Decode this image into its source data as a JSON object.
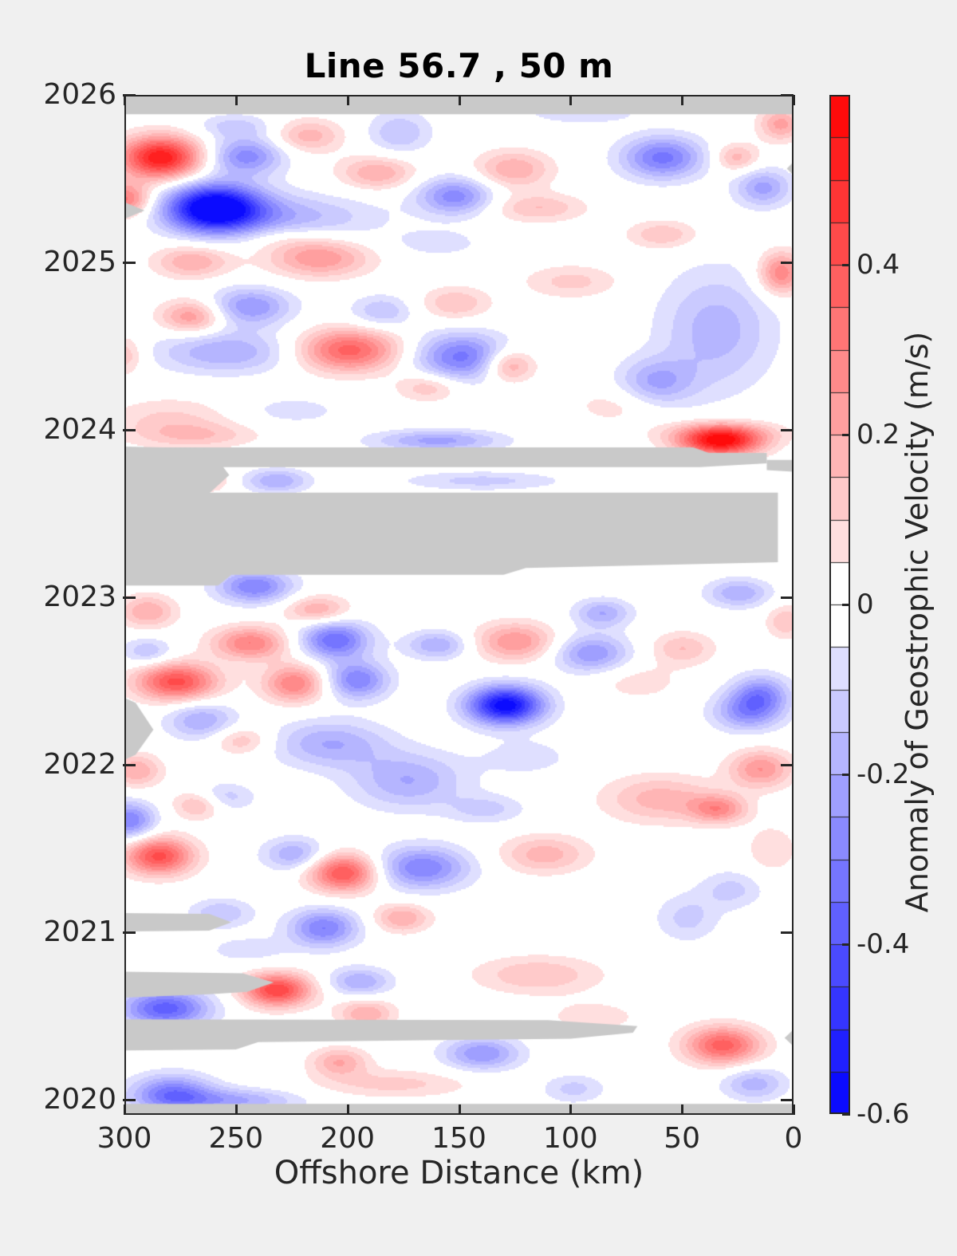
{
  "chart_data": {
    "type": "heatmap",
    "title": "Line 56.7 , 50 m",
    "xlabel": "Offshore Distance (km)",
    "x_ticks": [
      "300",
      "250",
      "200",
      "150",
      "100",
      "50",
      "0"
    ],
    "x_tick_km": [
      300,
      250,
      200,
      150,
      100,
      50,
      0
    ],
    "x_range": [
      300,
      0
    ],
    "x_axis_reversed": true,
    "y_ticks": [
      "2020",
      "2021",
      "2022",
      "2023",
      "2024",
      "2025",
      "2026"
    ],
    "y_tick_years": [
      2020,
      2021,
      2022,
      2023,
      2024,
      2025,
      2026
    ],
    "y_range": [
      2019.91,
      2026.0
    ],
    "grid": false,
    "colorbar": {
      "label": "Anomaly of Geostrophic Velocity (m/s)",
      "tick_labels": [
        "0.4",
        "0.2",
        "0",
        "-0.2",
        "-0.4",
        "-0.6"
      ],
      "tick_values": [
        0.4,
        0.2,
        0,
        -0.2,
        -0.4,
        -0.6
      ],
      "range": [
        -0.6,
        0.6
      ],
      "level_step": 0.05,
      "colormap": "blue-white-red",
      "neg_color": "#0000ff",
      "zero_color": "#ffffff",
      "pos_color": "#ff0000"
    },
    "missing_color": "#c9c9c9",
    "background_color": "#f0f0f0",
    "axis_color": "#262626",
    "anomaly_columns": [
      "offshore_km",
      "year",
      "amplitude_m_per_s",
      "sigma_km",
      "sigma_yr"
    ],
    "anomalies": [
      [
        284,
        2025.63,
        0.55,
        13,
        0.09
      ],
      [
        300,
        2025.38,
        0.32,
        8,
        0.07
      ],
      [
        260,
        2025.33,
        -0.66,
        15,
        0.1
      ],
      [
        228,
        2025.27,
        -0.18,
        28,
        0.1
      ],
      [
        246,
        2025.64,
        -0.28,
        12,
        0.08
      ],
      [
        251,
        2025.82,
        -0.12,
        12,
        0.05
      ],
      [
        218,
        2025.76,
        0.18,
        11,
        0.07
      ],
      [
        187,
        2025.54,
        0.2,
        12,
        0.07
      ],
      [
        177,
        2025.78,
        -0.15,
        10,
        0.09
      ],
      [
        152,
        2025.4,
        -0.28,
        12,
        0.08
      ],
      [
        126,
        2025.56,
        0.2,
        12,
        0.08
      ],
      [
        115,
        2025.33,
        0.15,
        15,
        0.06
      ],
      [
        95,
        2025.9,
        -0.1,
        18,
        0.05
      ],
      [
        59,
        2025.63,
        -0.32,
        13,
        0.09
      ],
      [
        26,
        2025.63,
        0.18,
        7,
        0.06
      ],
      [
        14,
        2025.45,
        -0.22,
        9,
        0.08
      ],
      [
        6,
        2025.83,
        0.22,
        7,
        0.07
      ],
      [
        59,
        2025.17,
        0.15,
        11,
        0.06
      ],
      [
        270,
        2025.01,
        0.2,
        12,
        0.07
      ],
      [
        213,
        2025.03,
        0.25,
        16,
        0.08
      ],
      [
        160,
        2025.12,
        -0.08,
        15,
        0.06
      ],
      [
        230,
        2025.15,
        0.08,
        15,
        0.06
      ],
      [
        244,
        2024.74,
        -0.25,
        13,
        0.08
      ],
      [
        270,
        2024.68,
        0.25,
        10,
        0.07
      ],
      [
        185,
        2024.71,
        -0.15,
        10,
        0.07
      ],
      [
        152,
        2024.76,
        0.15,
        11,
        0.07
      ],
      [
        255,
        2024.47,
        -0.2,
        22,
        0.09
      ],
      [
        300,
        2024.45,
        0.15,
        6,
        0.08
      ],
      [
        200,
        2024.48,
        0.38,
        16,
        0.09
      ],
      [
        149,
        2024.44,
        -0.32,
        15,
        0.1
      ],
      [
        128,
        2024.39,
        0.25,
        8,
        0.07
      ],
      [
        164,
        2024.26,
        0.15,
        10,
        0.06
      ],
      [
        35,
        2024.6,
        -0.18,
        18,
        0.25
      ],
      [
        62,
        2024.29,
        -0.2,
        12,
        0.1
      ],
      [
        100,
        2024.89,
        0.12,
        15,
        0.07
      ],
      [
        6,
        2024.94,
        0.3,
        7,
        0.09
      ],
      [
        280,
        2024.05,
        0.12,
        20,
        0.1
      ],
      [
        225,
        2024.12,
        -0.08,
        16,
        0.06
      ],
      [
        80,
        2024.15,
        0.08,
        14,
        0.08
      ],
      [
        33,
        2023.93,
        0.52,
        13,
        0.06
      ],
      [
        33,
        2023.99,
        0.18,
        18,
        0.05
      ],
      [
        160,
        2023.94,
        -0.22,
        20,
        0.045
      ],
      [
        232,
        2023.7,
        -0.2,
        10,
        0.05
      ],
      [
        262,
        2023.71,
        0.15,
        6,
        0.05
      ],
      [
        140,
        2023.7,
        -0.12,
        25,
        0.04
      ],
      [
        265,
        2023.97,
        0.1,
        18,
        0.05
      ],
      [
        242,
        2023.07,
        -0.3,
        12,
        0.07
      ],
      [
        290,
        2022.92,
        0.2,
        9,
        0.07
      ],
      [
        214,
        2022.93,
        0.2,
        10,
        0.06
      ],
      [
        25,
        2023.03,
        -0.2,
        10,
        0.06
      ],
      [
        86,
        2022.91,
        -0.2,
        9,
        0.06
      ],
      [
        244,
        2022.73,
        0.3,
        12,
        0.07
      ],
      [
        206,
        2022.75,
        -0.35,
        11,
        0.08
      ],
      [
        290,
        2022.68,
        -0.15,
        8,
        0.06
      ],
      [
        160,
        2022.72,
        -0.2,
        10,
        0.06
      ],
      [
        125,
        2022.74,
        0.25,
        13,
        0.08
      ],
      [
        91,
        2022.67,
        -0.25,
        12,
        0.08
      ],
      [
        50,
        2022.7,
        0.15,
        10,
        0.07
      ],
      [
        4,
        2022.86,
        0.15,
        6,
        0.07
      ],
      [
        277,
        2022.5,
        0.42,
        13,
        0.08
      ],
      [
        224,
        2022.49,
        0.3,
        10,
        0.08
      ],
      [
        196,
        2022.51,
        -0.3,
        10,
        0.08
      ],
      [
        129,
        2022.37,
        -0.3,
        12,
        0.08
      ],
      [
        70,
        2022.5,
        0.08,
        14,
        0.08
      ],
      [
        15,
        2022.43,
        -0.25,
        9,
        0.08
      ],
      [
        266,
        2022.27,
        -0.2,
        11,
        0.08
      ],
      [
        248,
        2022.15,
        0.15,
        9,
        0.06
      ],
      [
        295,
        2021.97,
        0.2,
        8,
        0.07
      ],
      [
        208,
        2022.13,
        -0.2,
        18,
        0.1
      ],
      [
        173,
        2021.91,
        -0.2,
        18,
        0.12
      ],
      [
        130,
        2022.35,
        -0.3,
        12,
        0.08
      ],
      [
        120,
        2022.05,
        -0.08,
        15,
        0.08
      ],
      [
        21,
        2022.32,
        -0.25,
        11,
        0.08
      ],
      [
        15,
        2021.98,
        0.25,
        10,
        0.08
      ],
      [
        60,
        2021.8,
        0.18,
        18,
        0.1
      ],
      [
        34,
        2021.74,
        0.25,
        9,
        0.06
      ],
      [
        138,
        2021.74,
        -0.12,
        12,
        0.06
      ],
      [
        28,
        2021.26,
        -0.12,
        10,
        0.08
      ],
      [
        10,
        2021.5,
        0.1,
        8,
        0.1
      ],
      [
        257,
        2021.81,
        -0.15,
        10,
        0.06
      ],
      [
        267,
        2021.77,
        0.2,
        8,
        0.06
      ],
      [
        298,
        2021.67,
        -0.3,
        8,
        0.08
      ],
      [
        285,
        2021.46,
        0.42,
        11,
        0.08
      ],
      [
        202,
        2021.36,
        0.42,
        11,
        0.08
      ],
      [
        167,
        2021.39,
        -0.3,
        15,
        0.09
      ],
      [
        224,
        2021.47,
        -0.2,
        10,
        0.07
      ],
      [
        112,
        2021.47,
        0.18,
        14,
        0.08
      ],
      [
        257,
        2021.12,
        -0.15,
        10,
        0.06
      ],
      [
        211,
        2021.03,
        -0.3,
        11,
        0.08
      ],
      [
        176,
        2021.09,
        0.2,
        9,
        0.06
      ],
      [
        48,
        2021.09,
        -0.12,
        10,
        0.1
      ],
      [
        245,
        2020.9,
        -0.08,
        14,
        0.06
      ],
      [
        232,
        2020.66,
        0.45,
        11,
        0.07
      ],
      [
        282,
        2020.55,
        -0.38,
        14,
        0.08
      ],
      [
        195,
        2020.71,
        -0.2,
        10,
        0.06
      ],
      [
        115,
        2020.75,
        0.15,
        20,
        0.08
      ],
      [
        192,
        2020.52,
        0.2,
        9,
        0.06
      ],
      [
        90,
        2020.5,
        0.08,
        16,
        0.07
      ],
      [
        32,
        2020.33,
        0.38,
        12,
        0.08
      ],
      [
        140,
        2020.28,
        -0.25,
        12,
        0.07
      ],
      [
        204,
        2020.23,
        0.2,
        9,
        0.06
      ],
      [
        279,
        2020.04,
        -0.32,
        13,
        0.08
      ],
      [
        250,
        2020.0,
        -0.2,
        20,
        0.05
      ],
      [
        180,
        2020.1,
        0.12,
        25,
        0.06
      ],
      [
        18,
        2020.1,
        -0.18,
        10,
        0.07
      ],
      [
        99,
        2020.07,
        -0.12,
        10,
        0.06
      ]
    ],
    "missing_regions": [
      {
        "name": "top-strip",
        "polygon": [
          [
            300,
            2026.0
          ],
          [
            0,
            2026.0
          ],
          [
            0,
            2025.885
          ],
          [
            300,
            2025.885
          ]
        ]
      },
      {
        "name": "left-notch-2025",
        "polygon": [
          [
            300,
            2025.36
          ],
          [
            291,
            2025.31
          ],
          [
            300,
            2025.26
          ]
        ]
      },
      {
        "name": "right-notch-2025",
        "polygon": [
          [
            0,
            2025.6
          ],
          [
            3,
            2025.56
          ],
          [
            0,
            2025.52
          ]
        ]
      },
      {
        "name": "band-2023-8",
        "polygon": [
          [
            300,
            2023.895
          ],
          [
            45,
            2023.895
          ],
          [
            38,
            2023.862
          ],
          [
            12,
            2023.862
          ],
          [
            12,
            2023.8
          ],
          [
            42,
            2023.778
          ],
          [
            300,
            2023.778
          ]
        ]
      },
      {
        "name": "right-piece-2023-8",
        "polygon": [
          [
            12,
            2023.82
          ],
          [
            0,
            2023.82
          ],
          [
            0,
            2023.75
          ],
          [
            12,
            2023.76
          ]
        ]
      },
      {
        "name": "left-connector-2023",
        "polygon": [
          [
            300,
            2023.9
          ],
          [
            262,
            2023.89
          ],
          [
            253,
            2023.73
          ],
          [
            262,
            2023.62
          ],
          [
            300,
            2023.61
          ]
        ]
      },
      {
        "name": "band-2023-large",
        "polygon": [
          [
            300,
            2023.625
          ],
          [
            7,
            2023.625
          ],
          [
            7,
            2023.21
          ],
          [
            120,
            2023.175
          ],
          [
            130,
            2023.135
          ],
          [
            252,
            2023.135
          ],
          [
            258,
            2023.07
          ],
          [
            300,
            2023.07
          ]
        ]
      },
      {
        "name": "left-notch-2022",
        "polygon": [
          [
            300,
            2022.4
          ],
          [
            295,
            2022.37
          ],
          [
            287,
            2022.21
          ],
          [
            295,
            2022.06
          ],
          [
            300,
            2022.03
          ]
        ]
      },
      {
        "name": "finger-2021",
        "polygon": [
          [
            300,
            2021.115
          ],
          [
            262,
            2021.11
          ],
          [
            252,
            2021.06
          ],
          [
            262,
            2021.01
          ],
          [
            300,
            2021.005
          ]
        ]
      },
      {
        "name": "finger-2020-7",
        "polygon": [
          [
            300,
            2020.765
          ],
          [
            247,
            2020.755
          ],
          [
            233,
            2020.7
          ],
          [
            245,
            2020.645
          ],
          [
            262,
            2020.63
          ],
          [
            300,
            2020.61
          ]
        ]
      },
      {
        "name": "band-2020-4",
        "polygon": [
          [
            300,
            2020.48
          ],
          [
            110,
            2020.475
          ],
          [
            70,
            2020.44
          ],
          [
            72,
            2020.4
          ],
          [
            100,
            2020.365
          ],
          [
            240,
            2020.345
          ],
          [
            250,
            2020.3
          ],
          [
            300,
            2020.295
          ]
        ]
      },
      {
        "name": "right-notch-2020",
        "polygon": [
          [
            0,
            2020.42
          ],
          [
            4,
            2020.37
          ],
          [
            0,
            2020.32
          ]
        ]
      },
      {
        "name": "bottom-strip",
        "polygon": [
          [
            300,
            2019.975
          ],
          [
            0,
            2019.975
          ],
          [
            0,
            2019.91
          ],
          [
            300,
            2019.91
          ]
        ]
      }
    ]
  }
}
